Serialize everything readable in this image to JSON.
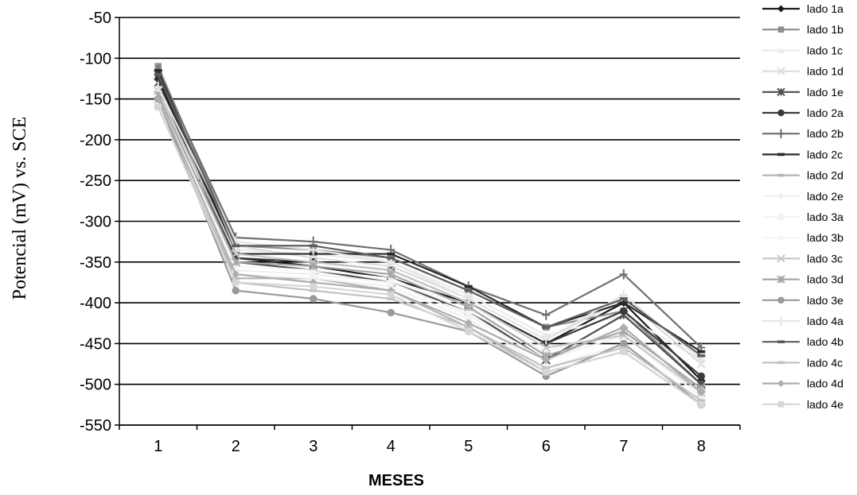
{
  "chart_data": {
    "type": "line",
    "xlabel": "MESES",
    "ylabel": "Potencial (mV) vs. SCE",
    "x": [
      1,
      2,
      3,
      4,
      5,
      6,
      7,
      8
    ],
    "ylim": [
      -550,
      -50
    ],
    "yticks": [
      -50,
      -100,
      -150,
      -200,
      -250,
      -300,
      -350,
      -400,
      -450,
      -500,
      -550
    ],
    "grid": "horizontal",
    "legend_position": "right",
    "series": [
      {
        "name": "lado 1a",
        "color": "#1a1a1a",
        "marker": "diamond",
        "values": [
          -125,
          -345,
          -355,
          -370,
          -400,
          -450,
          -400,
          -495
        ]
      },
      {
        "name": "lado 1b",
        "color": "#8c8c8c",
        "marker": "square",
        "values": [
          -110,
          -330,
          -335,
          -345,
          -385,
          -430,
          -410,
          -500
        ]
      },
      {
        "name": "lado 1c",
        "color": "#ebebeb",
        "marker": "triangle",
        "values": [
          -145,
          -335,
          -340,
          -350,
          -390,
          -440,
          -415,
          -470
        ]
      },
      {
        "name": "lado 1d",
        "color": "#dcdcdc",
        "marker": "x",
        "values": [
          -140,
          -330,
          -345,
          -355,
          -395,
          -445,
          -395,
          -475
        ]
      },
      {
        "name": "lado 1e",
        "color": "#4d4d4d",
        "marker": "asterisk",
        "values": [
          -130,
          -350,
          -360,
          -375,
          -410,
          -470,
          -415,
          -500
        ]
      },
      {
        "name": "lado 2a",
        "color": "#3a3a3a",
        "marker": "circle",
        "values": [
          -120,
          -345,
          -350,
          -360,
          -400,
          -450,
          -410,
          -490
        ]
      },
      {
        "name": "lado 2b",
        "color": "#707070",
        "marker": "plus",
        "values": [
          -115,
          -320,
          -325,
          -335,
          -380,
          -415,
          -365,
          -455
        ]
      },
      {
        "name": "lado 2c",
        "color": "#2a2a2a",
        "marker": "dash",
        "values": [
          -115,
          -340,
          -340,
          -340,
          -380,
          -430,
          -400,
          -460
        ]
      },
      {
        "name": "lado 2d",
        "color": "#b3b3b3",
        "marker": "dash",
        "values": [
          -155,
          -370,
          -370,
          -385,
          -430,
          -485,
          -460,
          -525
        ]
      },
      {
        "name": "lado 2e",
        "color": "#f0f0f0",
        "marker": "diamond",
        "values": [
          -150,
          -360,
          -365,
          -375,
          -415,
          -470,
          -440,
          -515
        ]
      },
      {
        "name": "lado 3a",
        "color": "#f2f2f2",
        "marker": "square",
        "values": [
          -155,
          -365,
          -370,
          -380,
          -420,
          -480,
          -450,
          -520
        ]
      },
      {
        "name": "lado 3b",
        "color": "#f5f5f5",
        "marker": "triangle",
        "values": [
          -150,
          -355,
          -360,
          -370,
          -410,
          -460,
          -430,
          -505
        ]
      },
      {
        "name": "lado 3c",
        "color": "#c8c8c8",
        "marker": "x",
        "values": [
          -140,
          -340,
          -350,
          -360,
          -400,
          -455,
          -440,
          -510
        ]
      },
      {
        "name": "lado 3d",
        "color": "#a6a6a6",
        "marker": "asterisk",
        "values": [
          -145,
          -350,
          -355,
          -365,
          -405,
          -465,
          -435,
          -505
        ]
      },
      {
        "name": "lado 3e",
        "color": "#9a9a9a",
        "marker": "circle",
        "values": [
          -150,
          -385,
          -395,
          -412,
          -435,
          -490,
          -450,
          -525
        ]
      },
      {
        "name": "lado 4a",
        "color": "#e6e6e6",
        "marker": "plus",
        "values": [
          -135,
          -325,
          -335,
          -350,
          -395,
          -445,
          -390,
          -470
        ]
      },
      {
        "name": "lado 4b",
        "color": "#5e5e5e",
        "marker": "dash",
        "values": [
          -120,
          -330,
          -330,
          -345,
          -385,
          -430,
          -395,
          -465
        ]
      },
      {
        "name": "lado 4c",
        "color": "#c2c2c2",
        "marker": "dash",
        "values": [
          -160,
          -375,
          -385,
          -395,
          -430,
          -480,
          -455,
          -520
        ]
      },
      {
        "name": "lado 4d",
        "color": "#adadad",
        "marker": "diamond",
        "values": [
          -150,
          -365,
          -375,
          -385,
          -425,
          -470,
          -430,
          -510
        ]
      },
      {
        "name": "lado 4e",
        "color": "#d6d6d6",
        "marker": "square",
        "values": [
          -160,
          -375,
          -380,
          -390,
          -435,
          -485,
          -460,
          -525
        ]
      }
    ]
  }
}
